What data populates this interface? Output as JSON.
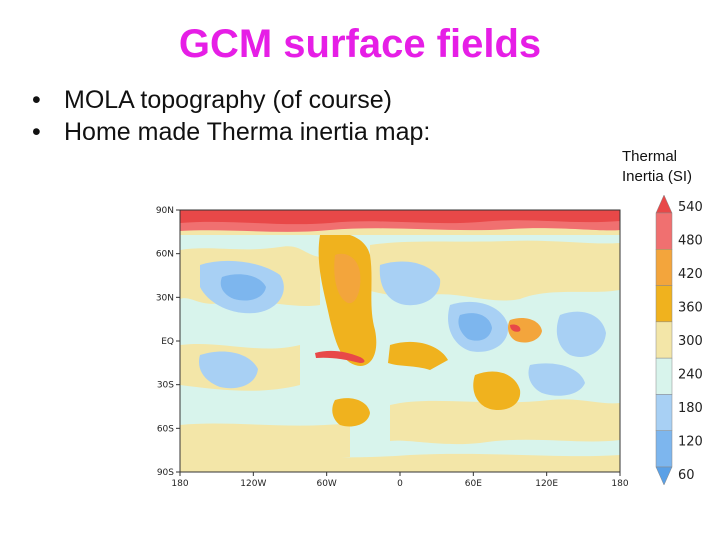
{
  "slide": {
    "title": "GCM surface fields",
    "bullets": [
      "MOLA topography (of course)",
      "Home made Therma inertia map:"
    ]
  },
  "legend": {
    "title_line1": "Thermal",
    "title_line2": "Inertia (SI)",
    "levels": [
      "540",
      "480",
      "420",
      "360",
      "300",
      "240",
      "180",
      "120",
      "60"
    ],
    "colors": [
      "#e84848",
      "#f07070",
      "#f3a53c",
      "#f0b21e",
      "#f3e6a8",
      "#d8f4ec",
      "#a8d0f4",
      "#7db6ee",
      "#5aa0e6"
    ]
  },
  "map": {
    "lat_labels": [
      "90N",
      "60N",
      "30N",
      "EQ",
      "30S",
      "60S",
      "90S"
    ],
    "lon_labels": [
      "180",
      "120W",
      "60W",
      "0",
      "60E",
      "120E",
      "180"
    ],
    "lat_range": [
      -90,
      90
    ],
    "lon_range": [
      -180,
      180
    ]
  }
}
